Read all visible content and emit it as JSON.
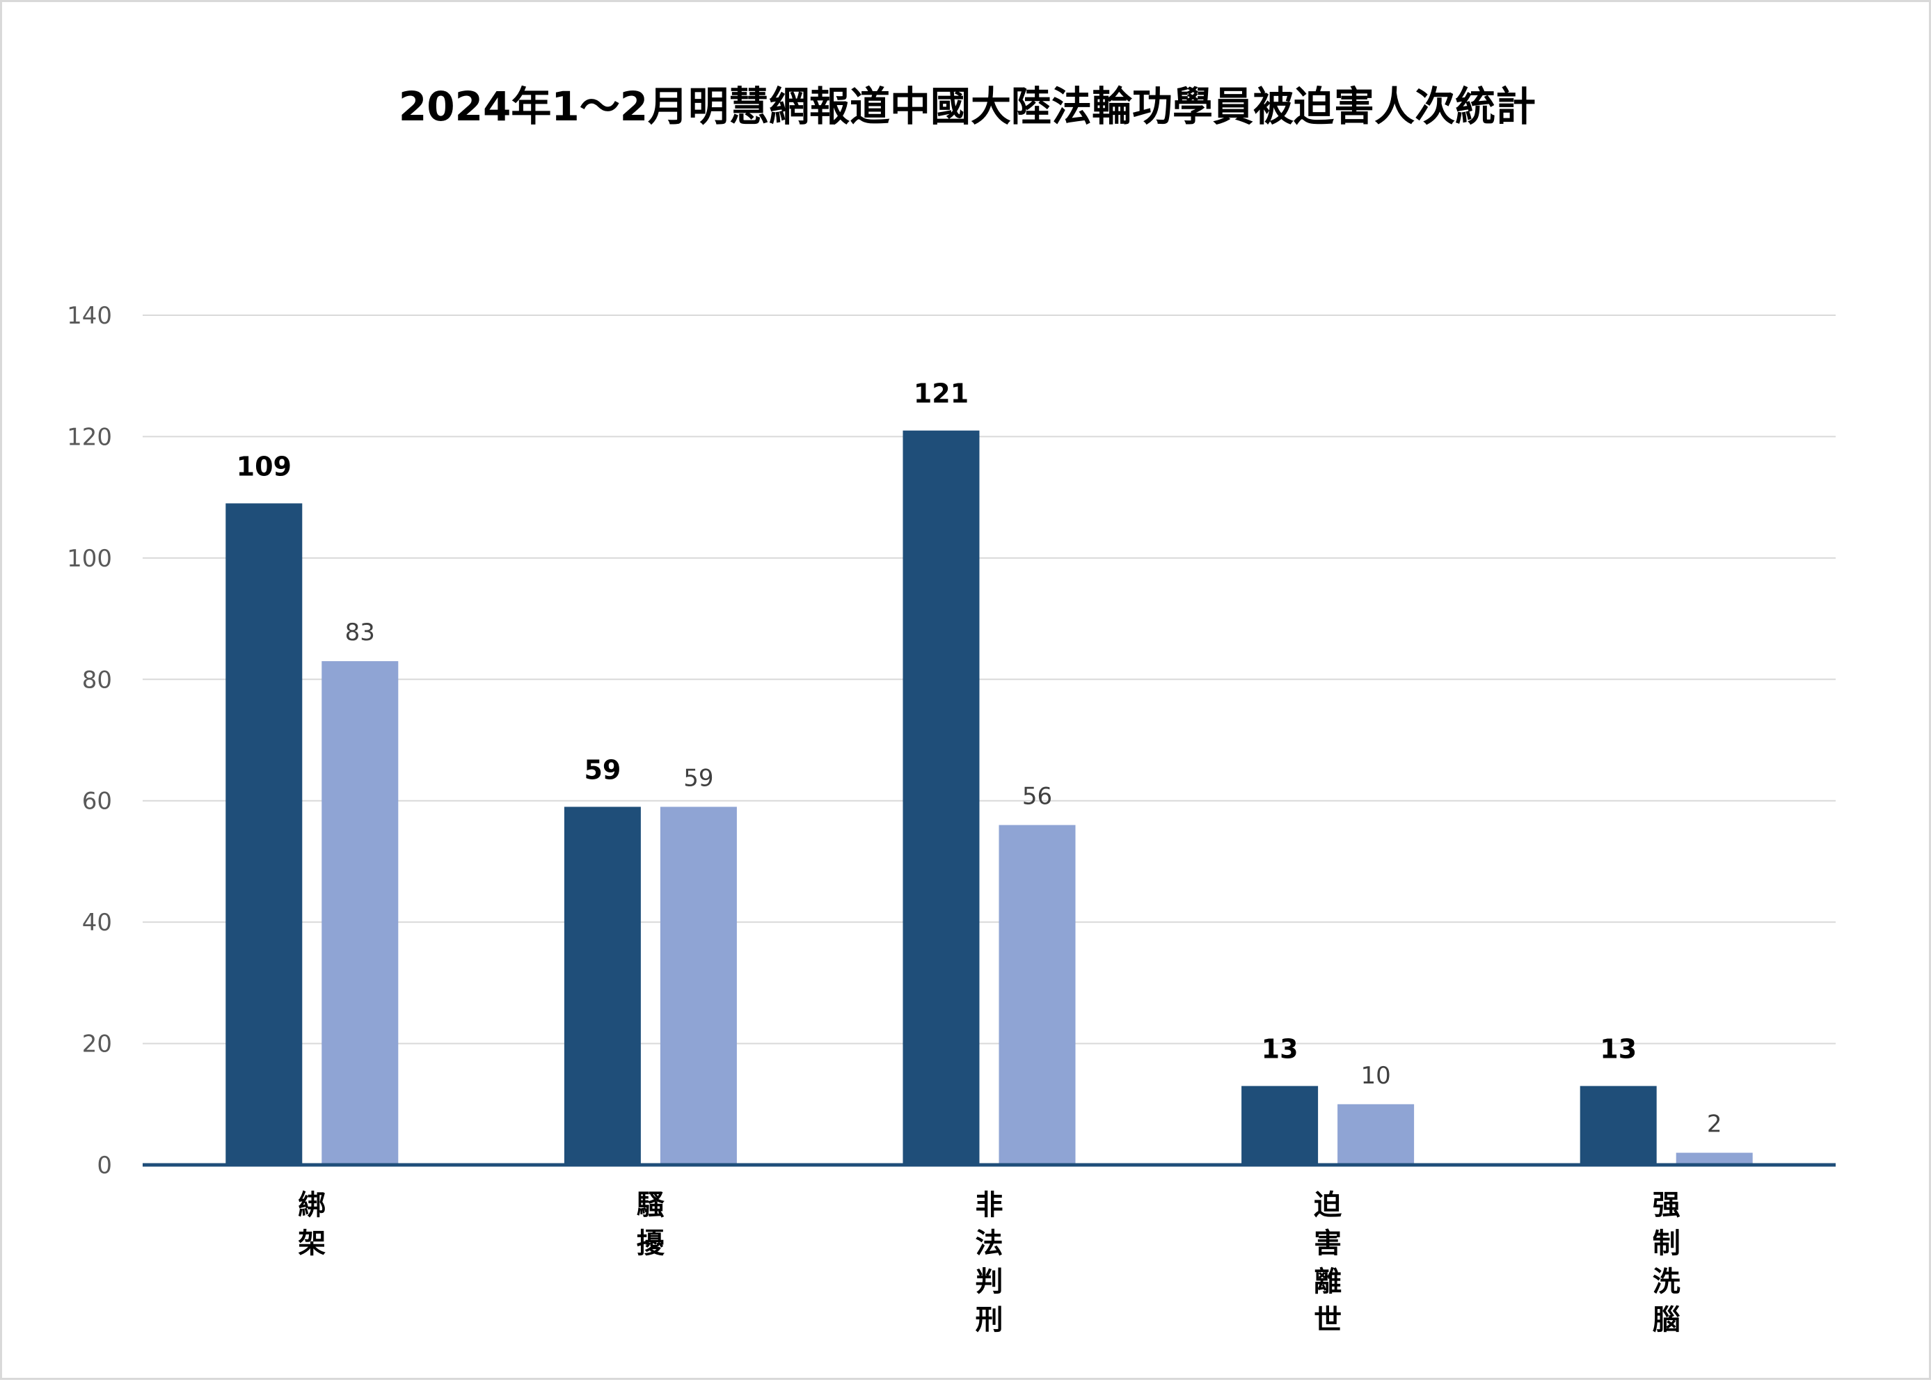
{
  "chart_data": {
    "type": "bar",
    "title": "2024年1～2月明慧網報道中國大陸法輪功學員被迫害人次統計",
    "categories": [
      "綁架",
      "騷擾",
      "非法判刑",
      "迫害離世",
      "强制洗腦"
    ],
    "series": [
      {
        "values": [
          109,
          59,
          121,
          13,
          13
        ],
        "color": "#1f4e79"
      },
      {
        "values": [
          83,
          59,
          56,
          10,
          2
        ],
        "color": "#8fa4d4"
      }
    ],
    "xlabel": "",
    "ylabel": "",
    "ylim": [
      0,
      140
    ],
    "yticks": [
      0,
      20,
      40,
      60,
      80,
      100,
      120,
      140
    ],
    "grid": true,
    "legend": "none"
  }
}
